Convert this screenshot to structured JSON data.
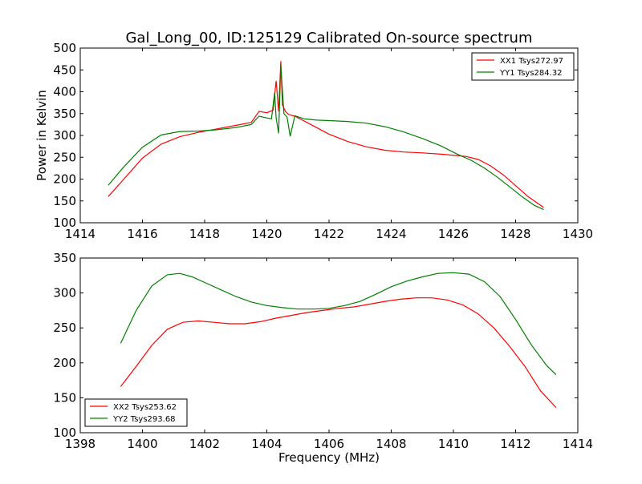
{
  "figure": {
    "title": "Gal_Long_00, ID:125129 Calibrated On-source spectrum"
  },
  "chart_data": [
    {
      "type": "line",
      "title": "Gal_Long_00, ID:125129 Calibrated On-source spectrum",
      "xlabel": "",
      "ylabel": "Power in Kelvin",
      "xlim": [
        1414,
        1430
      ],
      "ylim": [
        100,
        500
      ],
      "xticks": [
        1414,
        1416,
        1418,
        1420,
        1422,
        1424,
        1426,
        1428,
        1430
      ],
      "yticks": [
        100,
        150,
        200,
        250,
        300,
        350,
        400,
        450,
        500
      ],
      "grid": false,
      "legend_position": "top-right",
      "series": [
        {
          "name": "XX1 Tsys272.97",
          "color": "#ff0000",
          "x": [
            1414.9,
            1415.4,
            1416.0,
            1416.6,
            1417.2,
            1417.8,
            1418.4,
            1419.0,
            1419.5,
            1419.75,
            1420.0,
            1420.2,
            1420.3,
            1420.38,
            1420.45,
            1420.5,
            1420.6,
            1420.7,
            1420.9,
            1421.2,
            1421.6,
            1422.0,
            1422.6,
            1423.2,
            1423.8,
            1424.4,
            1425.0,
            1425.6,
            1426.1,
            1426.4,
            1426.8,
            1427.2,
            1427.6,
            1428.0,
            1428.4,
            1428.9
          ],
          "y": [
            160,
            200,
            248,
            280,
            297,
            307,
            315,
            323,
            330,
            355,
            352,
            358,
            425,
            355,
            470,
            370,
            355,
            348,
            344,
            333,
            318,
            303,
            286,
            274,
            266,
            262,
            260,
            257,
            254,
            252,
            245,
            230,
            210,
            185,
            160,
            135
          ]
        },
        {
          "name": "YY1 Tsys284.32",
          "color": "#008000",
          "x": [
            1414.9,
            1415.4,
            1416.0,
            1416.6,
            1417.2,
            1417.8,
            1418.4,
            1419.0,
            1419.5,
            1419.75,
            1420.0,
            1420.15,
            1420.25,
            1420.3,
            1420.38,
            1420.45,
            1420.55,
            1420.65,
            1420.75,
            1420.9,
            1421.2,
            1421.6,
            1422.0,
            1422.6,
            1423.2,
            1423.8,
            1424.4,
            1425.0,
            1425.6,
            1426.1,
            1426.6,
            1427.0,
            1427.4,
            1427.8,
            1428.2,
            1428.6,
            1428.9
          ],
          "y": [
            186,
            228,
            273,
            301,
            309,
            310,
            313,
            318,
            325,
            344,
            340,
            338,
            398,
            340,
            305,
            462,
            350,
            342,
            298,
            345,
            338,
            335,
            334,
            332,
            328,
            320,
            308,
            293,
            276,
            258,
            242,
            225,
            205,
            183,
            160,
            140,
            130
          ]
        }
      ]
    },
    {
      "type": "line",
      "title": "",
      "xlabel": "Frequency (MHz)",
      "ylabel": "",
      "xlim": [
        1398,
        1414
      ],
      "ylim": [
        100,
        350
      ],
      "xticks": [
        1398,
        1400,
        1402,
        1404,
        1406,
        1408,
        1410,
        1412,
        1414
      ],
      "yticks": [
        100,
        150,
        200,
        250,
        300,
        350
      ],
      "grid": false,
      "legend_position": "bottom-left",
      "series": [
        {
          "name": "XX2 Tsys253.62",
          "color": "#ff0000",
          "x": [
            1399.3,
            1399.8,
            1400.3,
            1400.8,
            1401.3,
            1401.8,
            1402.3,
            1402.8,
            1403.3,
            1403.8,
            1404.3,
            1404.8,
            1405.3,
            1405.8,
            1406.3,
            1406.8,
            1407.3,
            1407.8,
            1408.3,
            1408.8,
            1409.3,
            1409.8,
            1410.3,
            1410.8,
            1411.3,
            1411.8,
            1412.3,
            1412.8,
            1413.3
          ],
          "y": [
            166,
            195,
            225,
            248,
            258,
            260,
            258,
            256,
            256,
            259,
            264,
            268,
            272,
            275,
            278,
            280,
            284,
            288,
            291,
            293,
            293,
            290,
            283,
            270,
            250,
            224,
            195,
            160,
            136
          ]
        },
        {
          "name": "YY2 Tsys293.68",
          "color": "#008000",
          "x": [
            1399.3,
            1399.8,
            1400.3,
            1400.8,
            1401.2,
            1401.6,
            1402.0,
            1402.5,
            1403.0,
            1403.5,
            1404.0,
            1404.5,
            1405.0,
            1405.5,
            1406.0,
            1406.5,
            1407.0,
            1407.5,
            1408.0,
            1408.5,
            1409.0,
            1409.5,
            1410.0,
            1410.5,
            1411.0,
            1411.5,
            1412.0,
            1412.5,
            1413.0,
            1413.3
          ],
          "y": [
            228,
            275,
            310,
            326,
            328,
            323,
            315,
            305,
            295,
            287,
            282,
            279,
            277,
            277,
            278,
            282,
            288,
            298,
            309,
            317,
            323,
            328,
            329,
            327,
            316,
            295,
            262,
            226,
            196,
            183
          ]
        }
      ]
    }
  ]
}
